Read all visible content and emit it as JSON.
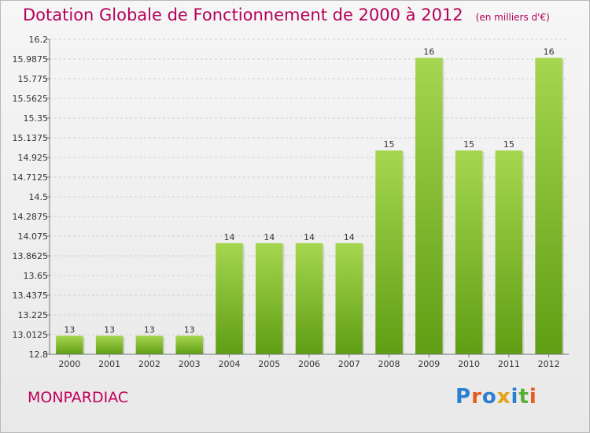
{
  "title": "Dotation Globale de Fonctionnement de 2000 à 2012",
  "unit_label": "(en milliers d'€)",
  "commune": "MONPARDIAC",
  "logo": {
    "text": "Proxiti",
    "colors": [
      "#2a7fd0",
      "#e85a1f",
      "#2a7fd0",
      "#e4a217",
      "#2a7fd0",
      "#58b033",
      "#e85a1f"
    ]
  },
  "colors": {
    "bar_light": "#a6d650",
    "bar_dark": "#5f9e14",
    "title": "#b4005a"
  },
  "chart_data": {
    "type": "bar",
    "title": "Dotation Globale de Fonctionnement de 2000 à 2012",
    "xlabel": "",
    "ylabel": "",
    "categories": [
      "2000",
      "2001",
      "2002",
      "2003",
      "2004",
      "2005",
      "2006",
      "2007",
      "2008",
      "2009",
      "2010",
      "2011",
      "2012"
    ],
    "values": [
      13,
      13,
      13,
      13,
      14,
      14,
      14,
      14,
      15,
      16,
      15,
      15,
      16
    ],
    "data_labels": [
      "13",
      "13",
      "13",
      "13",
      "14",
      "14",
      "14",
      "14",
      "15",
      "16",
      "15",
      "15",
      "16"
    ],
    "ylim": [
      12.8,
      16.2
    ],
    "yticks": [
      12.8,
      13.0125,
      13.225,
      13.4375,
      13.65,
      13.8625,
      14.075,
      14.2875,
      14.5,
      14.7125,
      14.925,
      15.1375,
      15.35,
      15.5625,
      15.775,
      15.9875,
      16.2
    ],
    "ytick_labels": [
      "12.8",
      "13.0125",
      "13.225",
      "13.4375",
      "13.65",
      "13.8625",
      "14.075",
      "14.2875",
      "14.5",
      "14.7125",
      "14.925",
      "15.1375",
      "15.35",
      "15.5625",
      "15.775",
      "15.9875",
      "16.2"
    ],
    "grid": true,
    "legend": "none"
  }
}
